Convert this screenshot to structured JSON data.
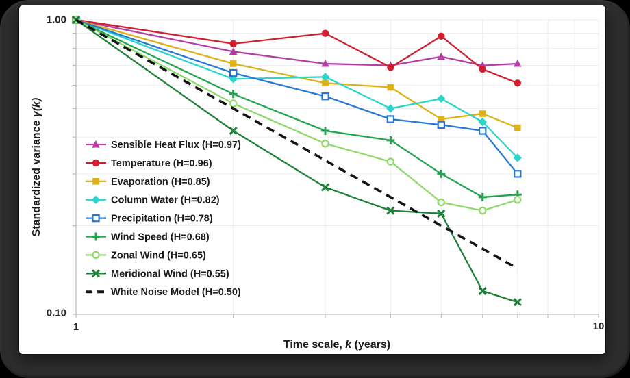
{
  "window": {
    "frame_color": "#2d2d2d",
    "page_background": "#000000",
    "card_background": "#ffffff"
  },
  "chart_data": {
    "type": "line",
    "xscale": "log",
    "yscale": "log",
    "xlim": [
      1,
      10
    ],
    "ylim": [
      0.1,
      1.0
    ],
    "grid": true,
    "grid_color": "#ececec",
    "axis_color": "#bdbdbd",
    "x_gridlines": [
      1,
      2,
      3,
      4,
      5,
      6,
      7,
      8,
      9,
      10
    ],
    "y_gridlines": [
      1.0,
      0.9,
      0.8,
      0.7,
      0.6,
      0.5,
      0.4,
      0.3,
      0.2,
      0.1
    ],
    "x": [
      1,
      2,
      3,
      4,
      5,
      6,
      7
    ],
    "xlabel_prefix": "Time scale, ",
    "xlabel_var": "k",
    "xlabel_suffix": " (years)",
    "ylabel_prefix": "Standardized variance ",
    "ylabel_var": "γ(k)",
    "x_tick_labels": {
      "left": "1",
      "right": "10"
    },
    "y_tick_labels": {
      "top": "1.00",
      "bottom": "0.10"
    },
    "legend_position": "inside-left",
    "series": [
      {
        "name": "Sensible Heat Flux (H=0.97)",
        "color": "#b43da8",
        "marker": "triangle",
        "values": [
          1.0,
          0.78,
          0.71,
          0.7,
          0.75,
          0.7,
          0.71
        ]
      },
      {
        "name": "Temperature (H=0.96)",
        "color": "#d02030",
        "marker": "circle",
        "values": [
          1.0,
          0.83,
          0.9,
          0.69,
          0.88,
          0.68,
          0.61
        ]
      },
      {
        "name": "Evaporation (H=0.85)",
        "color": "#ddb118",
        "marker": "square",
        "values": [
          1.0,
          0.71,
          0.61,
          0.59,
          0.46,
          0.48,
          0.43
        ]
      },
      {
        "name": "Column Water (H=0.82)",
        "color": "#2bd5cc",
        "marker": "diamond",
        "values": [
          1.0,
          0.63,
          0.64,
          0.5,
          0.54,
          0.45,
          0.34
        ]
      },
      {
        "name": "Precipitation (H=0.78)",
        "color": "#2678d8",
        "marker": "square-open",
        "values": [
          1.0,
          0.66,
          0.55,
          0.46,
          0.44,
          0.42,
          0.3
        ]
      },
      {
        "name": "Wind Speed (H=0.68)",
        "color": "#23a451",
        "marker": "plus",
        "values": [
          1.0,
          0.56,
          0.42,
          0.39,
          0.3,
          0.25,
          0.255
        ]
      },
      {
        "name": "Zonal Wind (H=0.65)",
        "color": "#8ed96a",
        "marker": "circle-open",
        "values": [
          1.0,
          0.52,
          0.38,
          0.33,
          0.24,
          0.225,
          0.245
        ]
      },
      {
        "name": "Meridional Wind (H=0.55)",
        "color": "#1e8039",
        "marker": "x",
        "values": [
          1.0,
          0.42,
          0.27,
          0.225,
          0.22,
          0.12,
          0.11
        ]
      },
      {
        "name": "White Noise Model (H=0.50)",
        "color": "#141414",
        "marker": "dash",
        "dashed": true,
        "values": [
          1.0,
          0.5,
          0.333,
          0.25,
          0.2,
          0.167,
          0.143
        ]
      }
    ]
  }
}
